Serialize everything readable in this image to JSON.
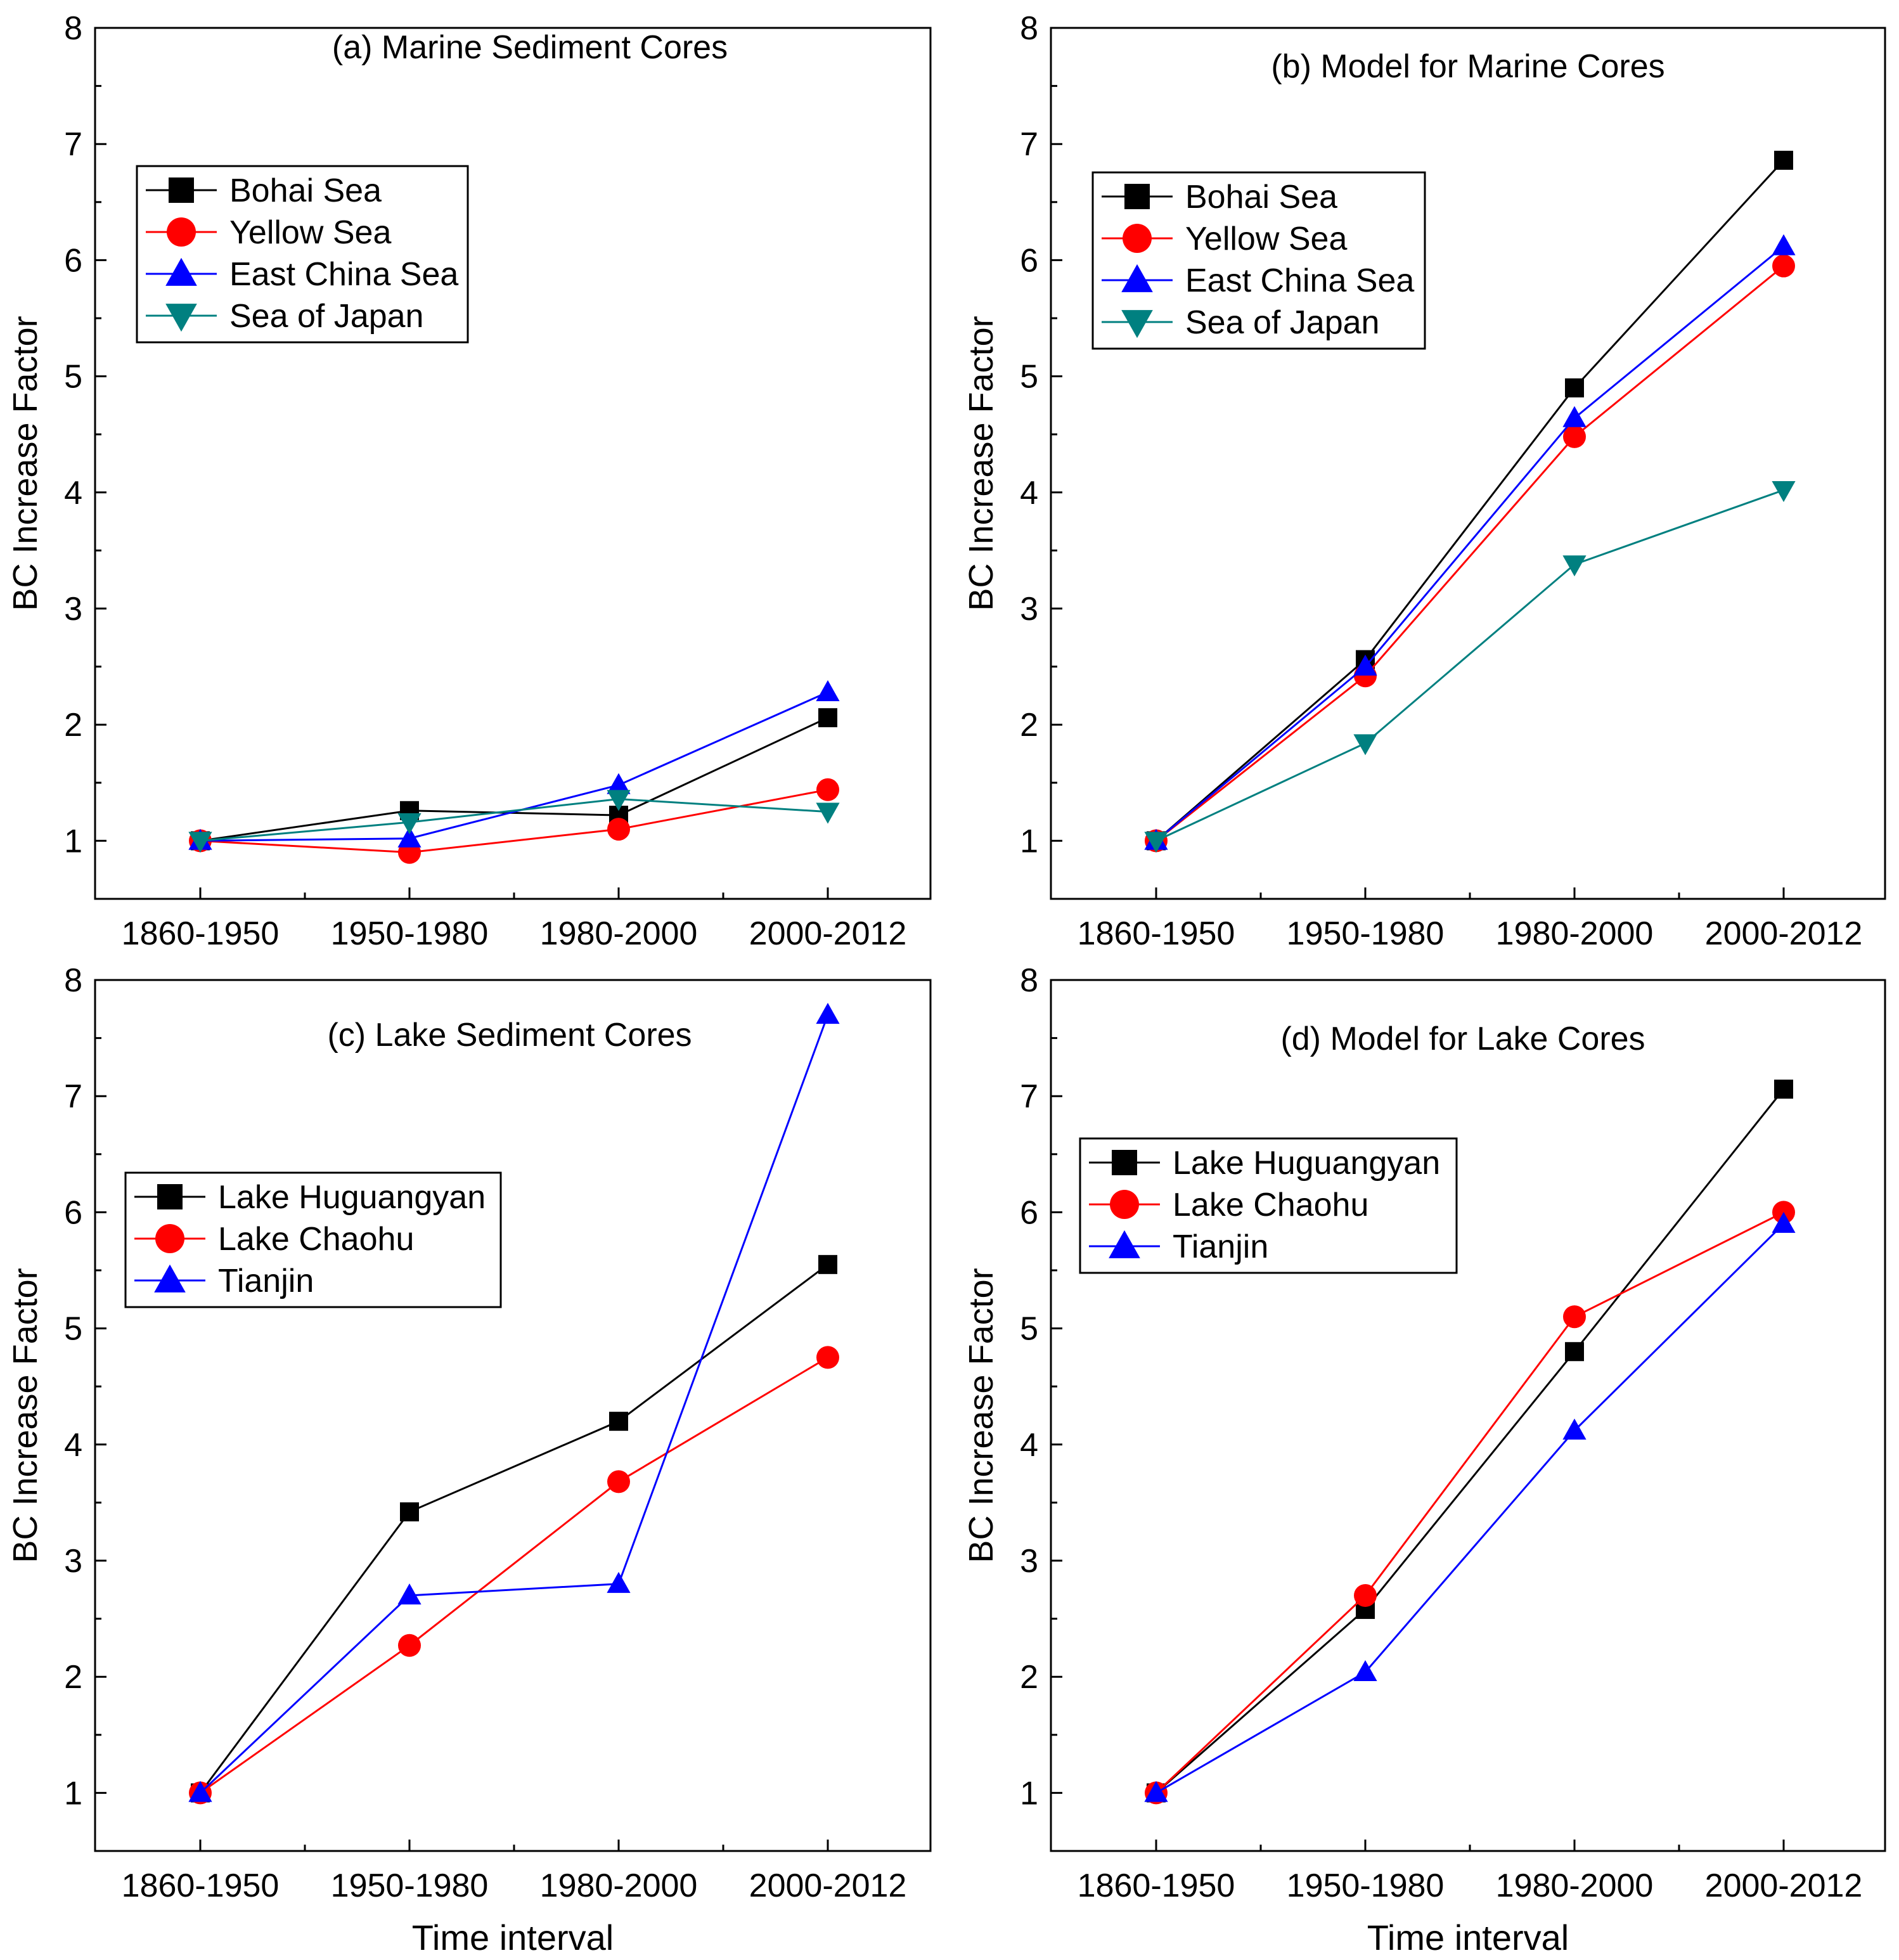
{
  "figure": {
    "x_axis_title": "Time interval",
    "y_axis_title": "BC Increase Factor"
  },
  "chart_data": [
    {
      "type": "line",
      "title": "(a) Marine Sediment Cores",
      "categories": [
        "1860-1950",
        "1950-1980",
        "1980-2000",
        "2000-2012"
      ],
      "xlabel": "",
      "ylabel": "BC Increase Factor",
      "ylim": [
        0.5,
        8
      ],
      "yticks": [
        1,
        2,
        3,
        4,
        5,
        6,
        7,
        8
      ],
      "legend_position": "upper-left",
      "series": [
        {
          "name": "Bohai Sea",
          "color": "#000000",
          "marker": "square",
          "values": [
            1.0,
            1.26,
            1.22,
            2.06
          ]
        },
        {
          "name": "Yellow Sea",
          "color": "#ff0000",
          "marker": "circle",
          "values": [
            1.0,
            0.9,
            1.1,
            1.44
          ]
        },
        {
          "name": "East China Sea",
          "color": "#0000ff",
          "marker": "triangle-up",
          "values": [
            1.0,
            1.02,
            1.48,
            2.28
          ]
        },
        {
          "name": "Sea of Japan",
          "color": "#008080",
          "marker": "triangle-down",
          "values": [
            1.0,
            1.16,
            1.36,
            1.25
          ]
        }
      ]
    },
    {
      "type": "line",
      "title": "(b) Model for Marine Cores",
      "categories": [
        "1860-1950",
        "1950-1980",
        "1980-2000",
        "2000-2012"
      ],
      "xlabel": "",
      "ylabel": "BC Increase Factor",
      "ylim": [
        0.5,
        8
      ],
      "yticks": [
        1,
        2,
        3,
        4,
        5,
        6,
        7,
        8
      ],
      "legend_position": "upper-left",
      "series": [
        {
          "name": "Bohai Sea",
          "color": "#000000",
          "marker": "square",
          "values": [
            1.0,
            2.56,
            4.9,
            6.86
          ]
        },
        {
          "name": "Yellow Sea",
          "color": "#ff0000",
          "marker": "circle",
          "values": [
            1.0,
            2.42,
            4.48,
            5.95
          ]
        },
        {
          "name": "East China Sea",
          "color": "#0000ff",
          "marker": "triangle-up",
          "values": [
            1.0,
            2.5,
            4.64,
            6.12
          ]
        },
        {
          "name": "Sea of Japan",
          "color": "#008080",
          "marker": "triangle-down",
          "values": [
            1.0,
            1.84,
            3.38,
            4.02
          ]
        }
      ]
    },
    {
      "type": "line",
      "title": "(c) Lake Sediment Cores",
      "categories": [
        "1860-1950",
        "1950-1980",
        "1980-2000",
        "2000-2012"
      ],
      "xlabel": "Time interval",
      "ylabel": "BC Increase Factor",
      "ylim": [
        0.5,
        8
      ],
      "yticks": [
        1,
        2,
        3,
        4,
        5,
        6,
        7,
        8
      ],
      "legend_position": "middle-left",
      "series": [
        {
          "name": "Lake Huguangyan",
          "color": "#000000",
          "marker": "square",
          "values": [
            1.0,
            3.42,
            4.2,
            5.55
          ]
        },
        {
          "name": "Lake Chaohu",
          "color": "#ff0000",
          "marker": "circle",
          "values": [
            1.0,
            2.27,
            3.68,
            4.75
          ]
        },
        {
          "name": "Tianjin",
          "color": "#0000ff",
          "marker": "triangle-up",
          "values": [
            1.0,
            2.7,
            2.8,
            7.7
          ]
        }
      ]
    },
    {
      "type": "line",
      "title": "(d) Model for Lake Cores",
      "categories": [
        "1860-1950",
        "1950-1980",
        "1980-2000",
        "2000-2012"
      ],
      "xlabel": "Time interval",
      "ylabel": "BC Increase Factor",
      "ylim": [
        0.5,
        8
      ],
      "yticks": [
        1,
        2,
        3,
        4,
        5,
        6,
        7,
        8
      ],
      "legend_position": "upper-left",
      "series": [
        {
          "name": "Lake Huguangyan",
          "color": "#000000",
          "marker": "square",
          "values": [
            1.0,
            2.58,
            4.8,
            7.06
          ]
        },
        {
          "name": "Lake Chaohu",
          "color": "#ff0000",
          "marker": "circle",
          "values": [
            1.0,
            2.7,
            5.1,
            6.0
          ]
        },
        {
          "name": "Tianjin",
          "color": "#0000ff",
          "marker": "triangle-up",
          "values": [
            1.0,
            2.04,
            4.12,
            5.9
          ]
        }
      ]
    }
  ]
}
